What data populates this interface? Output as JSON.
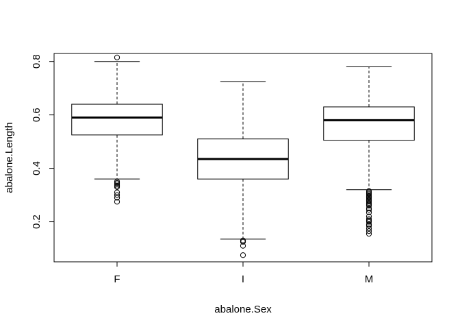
{
  "chart_data": {
    "type": "boxplot",
    "title": "",
    "xlabel": "abalone.Sex",
    "ylabel": "abalone.Length",
    "categories": [
      "F",
      "I",
      "M"
    ],
    "ylim": [
      0.05,
      0.83
    ],
    "yticks": [
      0.2,
      0.4,
      0.6,
      0.8
    ],
    "ytick_labels": [
      "0.2",
      "0.4",
      "0.6",
      "0.8"
    ],
    "grid": false,
    "legend": "none",
    "boxes": [
      {
        "category": "F",
        "whisker_low": 0.36,
        "q1": 0.525,
        "median": 0.59,
        "q3": 0.64,
        "whisker_high": 0.8,
        "outliers": [
          0.815,
          0.35,
          0.345,
          0.34,
          0.335,
          0.33,
          0.31,
          0.3,
          0.29,
          0.275
        ]
      },
      {
        "category": "I",
        "whisker_low": 0.135,
        "q1": 0.36,
        "median": 0.435,
        "q3": 0.51,
        "whisker_high": 0.725,
        "outliers": [
          0.13,
          0.125,
          0.11,
          0.075
        ]
      },
      {
        "category": "M",
        "whisker_low": 0.32,
        "q1": 0.505,
        "median": 0.58,
        "q3": 0.63,
        "whisker_high": 0.78,
        "outliers": [
          0.315,
          0.31,
          0.305,
          0.3,
          0.295,
          0.29,
          0.285,
          0.28,
          0.275,
          0.27,
          0.265,
          0.26,
          0.25,
          0.245,
          0.235,
          0.22,
          0.21,
          0.205,
          0.2,
          0.19,
          0.185,
          0.175,
          0.165,
          0.155
        ]
      }
    ]
  }
}
